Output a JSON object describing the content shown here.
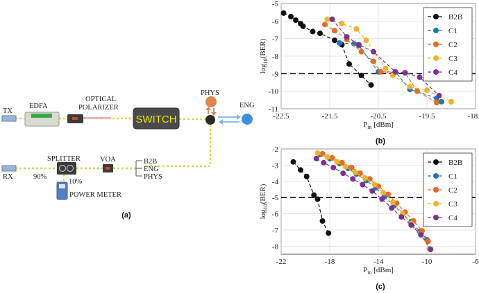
{
  "panel_a": {
    "caption": "(a)",
    "labels": {
      "tx": "TX",
      "edfa": "EDFA",
      "optical": "OPTICAL",
      "polarizer": "POLARIZER",
      "switch": "SWITCH",
      "phys": "PHYS",
      "eng": "ENG",
      "splitter": "SPLITTER",
      "voa": "VOA",
      "rx": "RX",
      "pct90": "90%",
      "pct10": "10%",
      "power_meter": "POWER METER",
      "branch": [
        "B2B",
        "ENG",
        "PHYS"
      ]
    },
    "colors": {
      "fiber": "#d8d84a",
      "phys": "#e0864e",
      "eng": "#3d8fe0",
      "arrow_phys": "#d08a56",
      "arrow_eng": "#7fb1e0",
      "switch": "#4a4a4a",
      "switch_text": "#e8e800",
      "tx_rx": "#7fa0c8",
      "power_meter": "#5080c0"
    }
  },
  "chart_data": [
    {
      "panel": "(b)",
      "type": "line",
      "xlabel_main": "P",
      "xlabel_sub": "in",
      "xlabel_unit": " [dBm]",
      "ylabel_main": "log",
      "ylabel_sub": "10",
      "ylabel_unit": "(BER)",
      "xlim": [
        -22.5,
        -18.5
      ],
      "ylim": [
        -11,
        -5
      ],
      "xticks": [
        -22.5,
        -21.5,
        -20.5,
        -19.5,
        -18.5
      ],
      "xticklabels": [
        "-22.5",
        "-21.5",
        "-20.5",
        "-19.5",
        "-18.5"
      ],
      "yticks": [
        -11,
        -10,
        -9,
        -8,
        -7,
        -6,
        -5
      ],
      "yticklabels": [
        "-11",
        "-10",
        "-9",
        "-8",
        "-7",
        "-6",
        "-5"
      ],
      "threshold": -9,
      "legend": "top-right",
      "series": [
        {
          "name": "B2B",
          "color": "#111111",
          "x": [
            -22.45,
            -22.3,
            -22.2,
            -22.1,
            -22.05,
            -21.85,
            -21.7,
            -21.4,
            -21.25,
            -21.1,
            -20.85,
            -20.65
          ],
          "y": [
            -5.55,
            -5.75,
            -5.95,
            -6.15,
            -6.3,
            -6.6,
            -6.7,
            -7.1,
            -7.35,
            -8.45,
            -9.1,
            -9.65
          ]
        },
        {
          "name": "C1",
          "color": "#1f78b4",
          "x": [
            -21.3,
            -21.0,
            -20.9,
            -20.5,
            -20.15,
            -19.85,
            -19.3,
            -19.2
          ],
          "y": [
            -7.25,
            -7.3,
            -7.4,
            -8.9,
            -8.9,
            -9.9,
            -10.4,
            -10.6
          ]
        },
        {
          "name": "C2",
          "color": "#e8691f",
          "x": [
            -21.6,
            -21.4,
            -21.15,
            -20.85,
            -20.6,
            -20.45,
            -19.95,
            -19.7,
            -19.3
          ],
          "y": [
            -6.2,
            -6.55,
            -7.05,
            -7.75,
            -8.3,
            -8.9,
            -8.95,
            -10.0,
            -10.65
          ]
        },
        {
          "name": "C3",
          "color": "#f0b429",
          "x": [
            -21.55,
            -21.25,
            -20.95,
            -20.75,
            -20.35,
            -20.2,
            -19.85,
            -19.5,
            -19.0
          ],
          "y": [
            -5.9,
            -6.15,
            -6.45,
            -7.1,
            -8.7,
            -9.1,
            -9.75,
            -9.95,
            -10.6
          ]
        },
        {
          "name": "C4",
          "color": "#7b3294",
          "x": [
            -21.45,
            -21.15,
            -20.9,
            -20.6,
            -20.15,
            -19.95,
            -19.65,
            -19.25
          ],
          "y": [
            -5.9,
            -6.9,
            -7.35,
            -7.75,
            -8.9,
            -8.95,
            -9.2,
            -10.25
          ]
        }
      ]
    },
    {
      "panel": "(c)",
      "type": "line",
      "xlabel_main": "P",
      "xlabel_sub": "in",
      "xlabel_unit": " [dBm]",
      "ylabel_main": "log",
      "ylabel_sub": "10",
      "ylabel_unit": "(BER)",
      "xlim": [
        -22,
        -6
      ],
      "ylim": [
        -8.5,
        -2
      ],
      "xticks": [
        -22,
        -18,
        -14,
        -10,
        -6
      ],
      "xticklabels": [
        "-22",
        "-18",
        "-14",
        "-10",
        "-6"
      ],
      "yticks": [
        -8,
        -7,
        -6,
        -5,
        -4,
        -3,
        -2
      ],
      "yticklabels": [
        "-8",
        "-7",
        "-6",
        "-5",
        "-4",
        "-3",
        "-2"
      ],
      "threshold": -5,
      "legend": "top-right",
      "series": [
        {
          "name": "B2B",
          "color": "#111111",
          "x": [
            -21.0,
            -20.4,
            -19.9,
            -19.3,
            -19.0,
            -18.6,
            -18.1
          ],
          "y": [
            -2.8,
            -3.3,
            -3.7,
            -4.85,
            -5.1,
            -6.45,
            -7.2
          ]
        },
        {
          "name": "C1",
          "color": "#1f78b4",
          "x": [
            -18.8,
            -18.0,
            -17.2,
            -16.5,
            -15.8,
            -15.0,
            -14.2,
            -13.5,
            -12.7,
            -12.0,
            -11.3,
            -10.6,
            -10.0
          ],
          "y": [
            -2.35,
            -2.6,
            -2.9,
            -3.2,
            -3.55,
            -3.95,
            -4.4,
            -4.95,
            -5.5,
            -6.0,
            -6.5,
            -7.1,
            -7.6
          ]
        },
        {
          "name": "C2",
          "color": "#e8691f",
          "x": [
            -18.6,
            -17.8,
            -17.0,
            -16.2,
            -15.5,
            -14.7,
            -14.0,
            -13.2,
            -12.5,
            -11.8,
            -11.1,
            -10.4,
            -9.9
          ],
          "y": [
            -2.3,
            -2.55,
            -2.85,
            -3.15,
            -3.5,
            -3.85,
            -4.3,
            -4.8,
            -5.35,
            -5.9,
            -6.45,
            -7.05,
            -7.7
          ]
        },
        {
          "name": "C3",
          "color": "#f0b429",
          "x": [
            -19.0,
            -18.2,
            -17.4,
            -16.7,
            -15.9,
            -15.1,
            -14.3,
            -13.6,
            -12.8,
            -12.0,
            -11.3,
            -10.5,
            -9.8
          ],
          "y": [
            -2.25,
            -2.5,
            -2.8,
            -3.1,
            -3.45,
            -3.8,
            -4.2,
            -4.7,
            -5.3,
            -6.0,
            -6.6,
            -7.3,
            -8.15
          ]
        },
        {
          "name": "C4",
          "color": "#7b3294",
          "x": [
            -19.1,
            -18.5,
            -17.7,
            -16.9,
            -16.1,
            -15.3,
            -14.5,
            -13.7,
            -12.9,
            -12.1,
            -11.3,
            -10.5,
            -9.7
          ],
          "y": [
            -2.6,
            -2.85,
            -3.15,
            -3.5,
            -3.85,
            -4.2,
            -4.6,
            -5.1,
            -5.65,
            -6.2,
            -6.7,
            -7.3,
            -8.2
          ]
        }
      ]
    }
  ]
}
